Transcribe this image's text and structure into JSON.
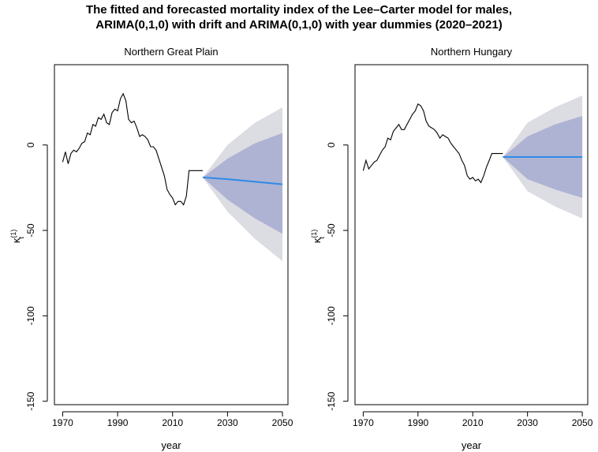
{
  "title_line1": "The fitted and forecasted mortality index of the Lee–Carter model for males,",
  "title_line2": "ARIMA(0,1,0) with drift and ARIMA(0,1,0) with year dummies (2020–2021)",
  "colors": {
    "fitted_line": "#000000",
    "forecast_mean": "#2e8ae6",
    "band_80": "#aeb3d3",
    "band_95": "#dcdce3",
    "axis": "#000000"
  },
  "chart_data": [
    {
      "type": "line",
      "title": "Northern Great Plain",
      "xlabel": "year",
      "ylabel_symbol": "κ",
      "ylabel_sup": "(1)",
      "ylabel_sub": "t",
      "xlim": [
        1967,
        2052
      ],
      "ylim": [
        -152,
        47
      ],
      "xticks": [
        1970,
        1990,
        2010,
        2030,
        2050
      ],
      "yticks": [
        0,
        -50,
        -100,
        -150
      ],
      "grid": false,
      "fitted": {
        "x": [
          1970,
          1971,
          1972,
          1973,
          1974,
          1975,
          1976,
          1977,
          1978,
          1979,
          1980,
          1981,
          1982,
          1983,
          1984,
          1985,
          1986,
          1987,
          1988,
          1989,
          1990,
          1991,
          1992,
          1993,
          1994,
          1995,
          1996,
          1997,
          1998,
          1999,
          2000,
          2001,
          2002,
          2003,
          2004,
          2005,
          2006,
          2007,
          2008,
          2009,
          2010,
          2011,
          2012,
          2013,
          2014,
          2015,
          2016,
          2017,
          2018,
          2019,
          2020,
          2021
        ],
        "y": [
          -10,
          -4,
          -11,
          -5,
          -3,
          -4,
          -2,
          1,
          2,
          7,
          6,
          12,
          11,
          16,
          15,
          18,
          13,
          12,
          19,
          21,
          20,
          27,
          30,
          26,
          15,
          13,
          14,
          10,
          5,
          6,
          5,
          3,
          -1,
          -1,
          -3,
          -8,
          -13,
          -18,
          -26,
          -29,
          -31,
          -35,
          -33,
          -33,
          -35,
          -30,
          -15,
          -15,
          -15,
          -15,
          -15,
          -15
        ]
      },
      "forecast": {
        "x": [
          2021,
          2030,
          2040,
          2050
        ],
        "mean": [
          -19,
          -20,
          -21.5,
          -23
        ],
        "lo80": [
          -19,
          -32,
          -43,
          -52
        ],
        "hi80": [
          -19,
          -8,
          1,
          7
        ],
        "lo95": [
          -19,
          -39,
          -55,
          -68
        ],
        "hi95": [
          -19,
          0,
          13,
          22
        ]
      }
    },
    {
      "type": "line",
      "title": "Northern Hungary",
      "xlabel": "year",
      "ylabel_symbol": "κ",
      "ylabel_sup": "(1)",
      "ylabel_sub": "t",
      "xlim": [
        1967,
        2052
      ],
      "ylim": [
        -152,
        47
      ],
      "xticks": [
        1970,
        1990,
        2010,
        2030,
        2050
      ],
      "yticks": [
        0,
        -50,
        -100,
        -150
      ],
      "grid": false,
      "fitted": {
        "x": [
          1970,
          1971,
          1972,
          1973,
          1974,
          1975,
          1976,
          1977,
          1978,
          1979,
          1980,
          1981,
          1982,
          1983,
          1984,
          1985,
          1986,
          1987,
          1988,
          1989,
          1990,
          1991,
          1992,
          1993,
          1994,
          1995,
          1996,
          1997,
          1998,
          1999,
          2000,
          2001,
          2002,
          2003,
          2004,
          2005,
          2006,
          2007,
          2008,
          2009,
          2010,
          2011,
          2012,
          2013,
          2014,
          2015,
          2016,
          2017,
          2018,
          2019,
          2020,
          2021
        ],
        "y": [
          -15,
          -9,
          -14,
          -12,
          -10,
          -9,
          -6,
          -3,
          -1,
          4,
          3,
          8,
          10,
          12,
          9,
          9,
          12,
          15,
          18,
          20,
          24,
          23,
          20,
          14,
          11,
          10,
          9,
          7,
          4,
          6,
          5,
          4,
          1,
          -1,
          -3,
          -5,
          -9,
          -12,
          -18,
          -20,
          -19,
          -21,
          -20,
          -22,
          -18,
          -13,
          -9,
          -5,
          -5,
          -5,
          -5,
          -5
        ]
      },
      "forecast": {
        "x": [
          2021,
          2030,
          2040,
          2050
        ],
        "mean": [
          -7,
          -7,
          -7,
          -7
        ],
        "lo80": [
          -7,
          -20,
          -26,
          -31
        ],
        "hi80": [
          -7,
          5,
          12,
          17
        ],
        "lo95": [
          -7,
          -27,
          -36,
          -43
        ],
        "hi95": [
          -7,
          13,
          22,
          29
        ]
      }
    }
  ]
}
